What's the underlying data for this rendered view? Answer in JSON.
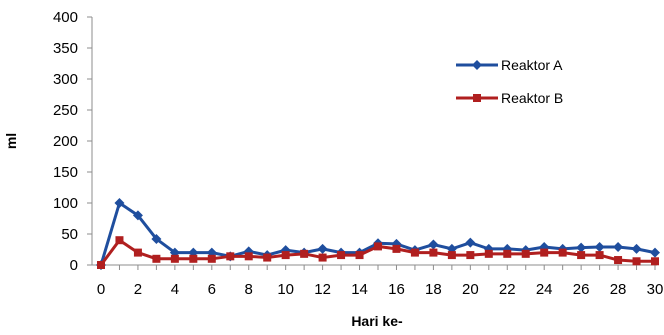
{
  "chart_data": {
    "type": "line",
    "title": "",
    "xlabel": "Hari ke-",
    "ylabel": "ml",
    "xlim": [
      0,
      30
    ],
    "ylim": [
      0,
      400
    ],
    "x_ticks": [
      0,
      2,
      4,
      6,
      8,
      10,
      12,
      14,
      16,
      18,
      20,
      22,
      24,
      26,
      28,
      30
    ],
    "y_ticks": [
      0,
      50,
      100,
      150,
      200,
      250,
      300,
      350,
      400
    ],
    "grid": false,
    "legend_position": "right",
    "x": [
      0,
      1,
      2,
      3,
      4,
      5,
      6,
      7,
      8,
      9,
      10,
      11,
      12,
      13,
      14,
      15,
      16,
      17,
      18,
      19,
      20,
      21,
      22,
      23,
      24,
      25,
      26,
      27,
      28,
      29,
      30
    ],
    "series": [
      {
        "name": "Reaktor A",
        "color": "#1f4e9e",
        "marker": "diamond",
        "values": [
          0,
          100,
          80,
          42,
          20,
          20,
          20,
          14,
          22,
          16,
          24,
          20,
          26,
          20,
          20,
          35,
          34,
          24,
          33,
          26,
          36,
          26,
          26,
          24,
          29,
          26,
          28,
          29,
          29,
          26,
          20
        ]
      },
      {
        "name": "Reaktor B",
        "color": "#b01f1f",
        "marker": "square",
        "values": [
          0,
          40,
          20,
          10,
          10,
          10,
          10,
          14,
          14,
          12,
          16,
          18,
          12,
          16,
          16,
          30,
          26,
          20,
          20,
          16,
          16,
          18,
          18,
          18,
          20,
          20,
          16,
          16,
          8,
          6,
          6
        ]
      }
    ]
  }
}
